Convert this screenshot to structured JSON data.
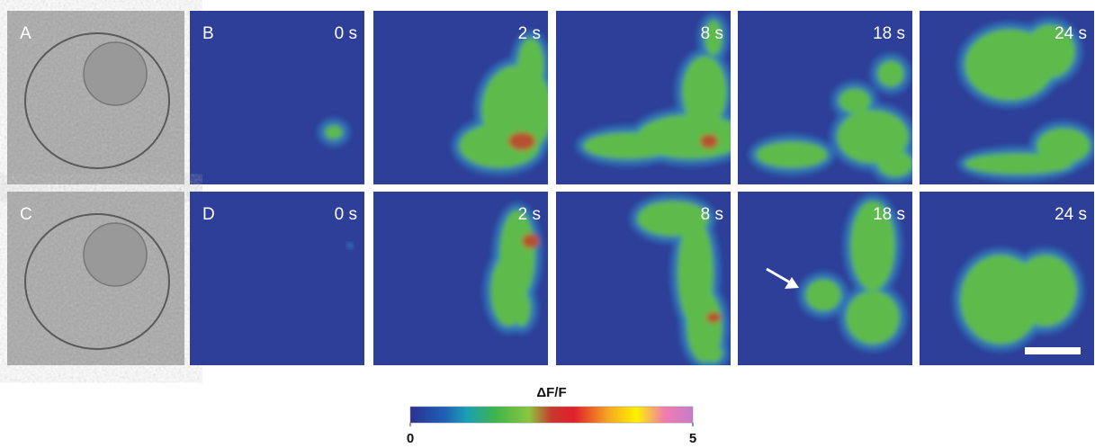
{
  "rows": [
    {
      "brightfield_label": "A",
      "sequence_label": "B",
      "times": [
        "0 s",
        "2 s",
        "8 s",
        "18 s",
        "24 s"
      ]
    },
    {
      "brightfield_label": "C",
      "sequence_label": "D",
      "times": [
        "0 s",
        "2 s",
        "8 s",
        "18 s",
        "24 s"
      ]
    }
  ],
  "colorbar": {
    "label": "ΔF/F",
    "min": 0,
    "max": 5,
    "ticks": [
      0,
      5
    ]
  }
}
